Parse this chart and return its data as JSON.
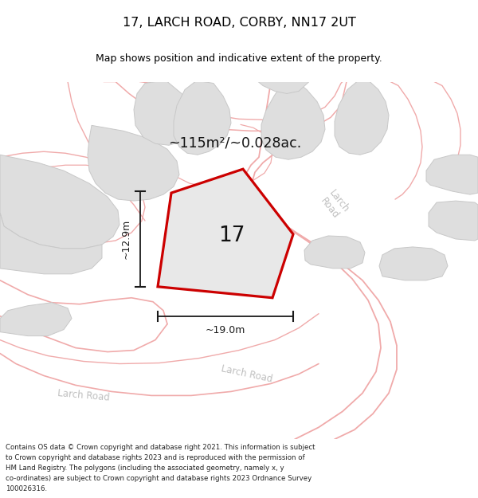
{
  "title": "17, LARCH ROAD, CORBY, NN17 2UT",
  "subtitle": "Map shows position and indicative extent of the property.",
  "area_text": "~115m²/~0.028ac.",
  "number_label": "17",
  "dim_width": "~19.0m",
  "dim_height": "~12.9m",
  "copyright_text": "Contains OS data © Crown copyright and database right 2021. This information is subject to Crown copyright and database rights 2023 and is reproduced with the permission of HM Land Registry. The polygons (including the associated geometry, namely x, y co-ordinates) are subject to Crown copyright and database rights 2023 Ordnance Survey 100026316.",
  "title_color": "#000000",
  "map_bg": "#f5f4f2",
  "building_color": "#dedede",
  "building_edge": "#c8c8c8",
  "road_area_color": "#ffffff",
  "property_fill": "#e8e8e8",
  "property_edge": "#cc0000",
  "road_line_color": "#f0aaaa",
  "road_label_color": "#c0c0c0",
  "dim_color": "#1a1a1a"
}
